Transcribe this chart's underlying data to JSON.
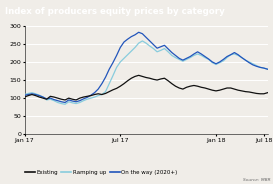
{
  "title": "Index of producers equity prices by category",
  "title_bg": "#1a7a8c",
  "title_color": "#ffffff",
  "source": "Source: MBR",
  "ylim": [
    0,
    300
  ],
  "yticks": [
    0,
    50,
    100,
    150,
    200,
    250,
    300
  ],
  "xtick_labels": [
    "Jan 17",
    "Jul 17",
    "Jan 18",
    "Jul 18"
  ],
  "xtick_pos": [
    0,
    26,
    52,
    65
  ],
  "legend": [
    "Existing",
    "Ramping up",
    "On the way (2020+)"
  ],
  "line_colors": [
    "#111111",
    "#88ccdd",
    "#2255bb"
  ],
  "plot_bg": "#f0ede8",
  "fig_bg": "#f0ede8",
  "existing": [
    103,
    107,
    110,
    107,
    103,
    100,
    97,
    105,
    103,
    100,
    97,
    95,
    100,
    97,
    95,
    100,
    103,
    105,
    107,
    110,
    112,
    110,
    113,
    118,
    123,
    127,
    133,
    140,
    148,
    155,
    160,
    163,
    160,
    157,
    155,
    152,
    150,
    153,
    155,
    148,
    140,
    133,
    128,
    125,
    130,
    133,
    135,
    133,
    130,
    128,
    125,
    122,
    120,
    122,
    125,
    128,
    128,
    125,
    122,
    120,
    118,
    117,
    115,
    113,
    112,
    112,
    115
  ],
  "ramping_up": [
    110,
    113,
    115,
    112,
    108,
    103,
    95,
    97,
    93,
    88,
    85,
    83,
    90,
    87,
    85,
    88,
    93,
    97,
    100,
    103,
    107,
    110,
    118,
    140,
    162,
    185,
    200,
    210,
    220,
    230,
    240,
    252,
    258,
    252,
    244,
    237,
    228,
    232,
    237,
    228,
    218,
    212,
    207,
    202,
    207,
    212,
    218,
    222,
    218,
    212,
    207,
    198,
    193,
    198,
    203,
    212,
    220,
    222,
    218,
    212,
    205,
    200,
    195,
    190,
    185,
    183,
    180
  ],
  "on_the_way": [
    108,
    110,
    112,
    110,
    107,
    103,
    98,
    100,
    96,
    93,
    90,
    88,
    95,
    92,
    90,
    93,
    98,
    102,
    108,
    115,
    125,
    140,
    158,
    180,
    198,
    218,
    240,
    255,
    263,
    270,
    275,
    282,
    278,
    268,
    258,
    248,
    238,
    242,
    246,
    236,
    226,
    218,
    210,
    205,
    210,
    215,
    222,
    228,
    222,
    215,
    208,
    200,
    195,
    200,
    207,
    215,
    220,
    226,
    220,
    212,
    205,
    198,
    192,
    188,
    185,
    183,
    180
  ]
}
